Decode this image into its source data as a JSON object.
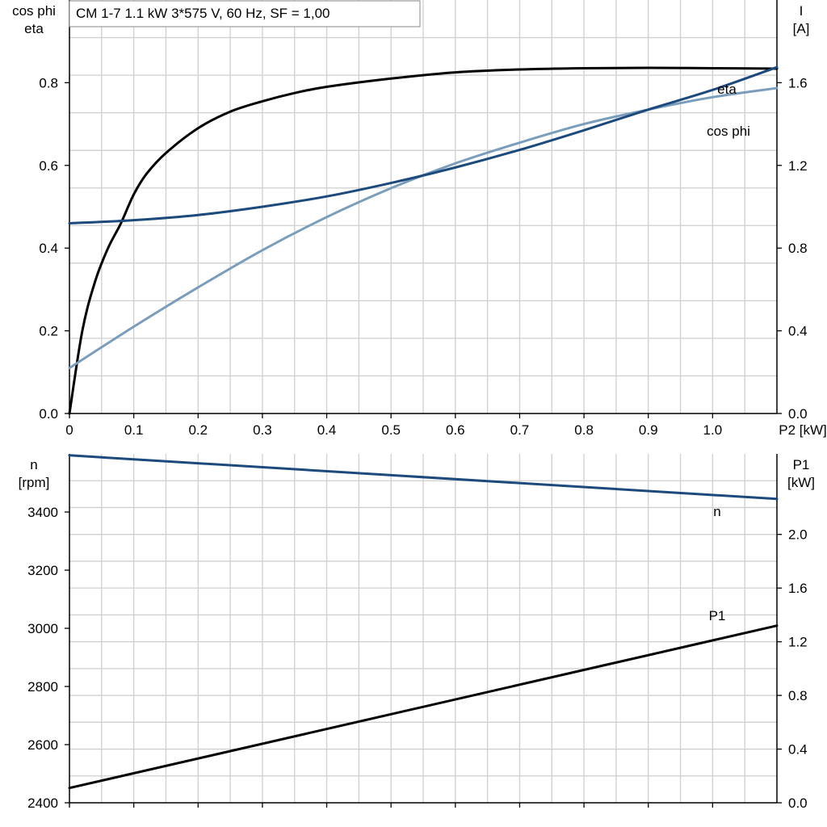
{
  "chart_data": [
    {
      "type": "line",
      "title": "CM 1-7   1.1 kW   3*575 V, 60 Hz, SF = 1,00",
      "x_axis": {
        "label": "P2 [kW]",
        "range": [
          0,
          1.1
        ],
        "ticks": [
          "0",
          "0.1",
          "0.2",
          "0.3",
          "0.4",
          "0.5",
          "0.6",
          "0.7",
          "0.8",
          "0.9",
          "1.0"
        ],
        "tick_values": [
          0,
          0.1,
          0.2,
          0.3,
          0.4,
          0.5,
          0.6,
          0.7,
          0.8,
          0.9,
          1.0
        ]
      },
      "y_left": {
        "label_lines": [
          "cos phi",
          "eta"
        ],
        "range": [
          0,
          1.0
        ],
        "ticks": [
          "0.0",
          "0.2",
          "0.4",
          "0.6",
          "0.8"
        ],
        "tick_values": [
          0,
          0.2,
          0.4,
          0.6,
          0.8
        ]
      },
      "y_right": {
        "label_lines": [
          "I",
          "[A]"
        ],
        "range": [
          0,
          2.0
        ],
        "ticks": [
          "0.0",
          "0.4",
          "0.8",
          "1.2",
          "1.6"
        ],
        "tick_values": [
          0,
          0.4,
          0.8,
          1.2,
          1.6
        ]
      },
      "grid": true,
      "series": [
        {
          "name": "eta",
          "axis": "left",
          "color": "#000000",
          "x": [
            0,
            0.02,
            0.04,
            0.06,
            0.08,
            0.1,
            0.12,
            0.15,
            0.2,
            0.25,
            0.3,
            0.35,
            0.4,
            0.5,
            0.6,
            0.7,
            0.8,
            0.9,
            1.0,
            1.1
          ],
          "y": [
            0.0,
            0.2,
            0.32,
            0.4,
            0.46,
            0.53,
            0.58,
            0.63,
            0.69,
            0.73,
            0.755,
            0.775,
            0.79,
            0.81,
            0.825,
            0.832,
            0.835,
            0.836,
            0.835,
            0.834
          ]
        },
        {
          "name": "cos phi",
          "axis": "left",
          "color": "#7b9dbc",
          "x": [
            0,
            0.1,
            0.2,
            0.3,
            0.4,
            0.5,
            0.6,
            0.7,
            0.8,
            0.9,
            1.0,
            1.1
          ],
          "y": [
            0.11,
            0.21,
            0.305,
            0.395,
            0.475,
            0.545,
            0.605,
            0.655,
            0.7,
            0.735,
            0.765,
            0.787
          ]
        },
        {
          "name": "I",
          "label": "",
          "axis": "right",
          "color": "#1c4a7c",
          "x": [
            0,
            0.1,
            0.2,
            0.3,
            0.4,
            0.5,
            0.6,
            0.7,
            0.8,
            0.9,
            1.0,
            1.1
          ],
          "y": [
            0.92,
            0.935,
            0.96,
            1.0,
            1.05,
            1.115,
            1.19,
            1.275,
            1.37,
            1.47,
            1.565,
            1.675
          ]
        }
      ]
    },
    {
      "type": "line",
      "x_axis": {
        "range": [
          0,
          1.1
        ],
        "tick_values": [
          0,
          0.1,
          0.2,
          0.3,
          0.4,
          0.5,
          0.6,
          0.7,
          0.8,
          0.9,
          1.0
        ]
      },
      "y_left": {
        "label_lines": [
          "n",
          "[rpm]"
        ],
        "range": [
          2400,
          3600
        ],
        "ticks": [
          "2400",
          "2600",
          "2800",
          "3000",
          "3200",
          "3400"
        ],
        "tick_values": [
          2400,
          2600,
          2800,
          3000,
          3200,
          3400
        ]
      },
      "y_right": {
        "label_lines": [
          "P1",
          "[kW]"
        ],
        "range": [
          0,
          2.6
        ],
        "ticks": [
          "0.0",
          "0.4",
          "0.8",
          "1.2",
          "1.6",
          "2.0"
        ],
        "tick_values": [
          0,
          0.4,
          0.8,
          1.2,
          1.6,
          2.0
        ]
      },
      "grid": true,
      "series": [
        {
          "name": "n",
          "axis": "left",
          "color": "#1c4a7c",
          "x": [
            0,
            1.1
          ],
          "y": [
            3595,
            3445
          ]
        },
        {
          "name": "P1",
          "axis": "right",
          "color": "#000000",
          "x": [
            0,
            1.1
          ],
          "y": [
            0.11,
            1.32
          ]
        }
      ]
    }
  ]
}
